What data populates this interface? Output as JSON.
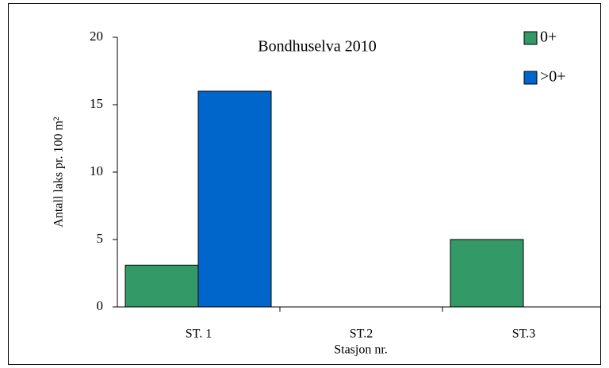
{
  "chart_data": {
    "type": "bar",
    "title": "Bondhuselva 2010",
    "x_label": "Stasjon nr.",
    "y_label": "Antall laks pr. 100 m²",
    "categories": [
      "ST. 1",
      "ST.2",
      "ST.3"
    ],
    "series": [
      {
        "name": "0+",
        "color": "#339966",
        "values": [
          3.1,
          0,
          5
        ]
      },
      {
        "name": ">0+",
        "color": "#0066cc",
        "values": [
          16,
          0,
          0
        ]
      }
    ],
    "ylim": [
      0,
      20
    ],
    "yticks": [
      0,
      5,
      10,
      15,
      20
    ],
    "grid": false,
    "legend": "top-right"
  }
}
